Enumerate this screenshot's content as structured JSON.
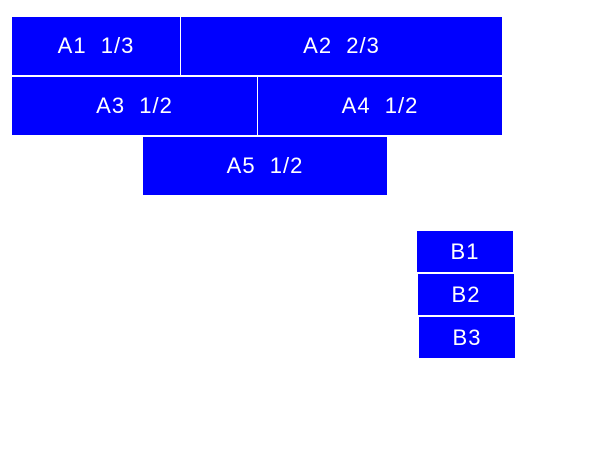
{
  "colors": {
    "box": "#0000ff",
    "text": "#ffffff"
  },
  "group_a": [
    {
      "label": "A1  1/3"
    },
    {
      "label": "A2  2/3"
    },
    {
      "label": "A3  1/2"
    },
    {
      "label": "A4  1/2"
    },
    {
      "label": "A5  1/2"
    }
  ],
  "group_b": [
    {
      "label": "B1"
    },
    {
      "label": "B2"
    },
    {
      "label": "B3"
    }
  ]
}
